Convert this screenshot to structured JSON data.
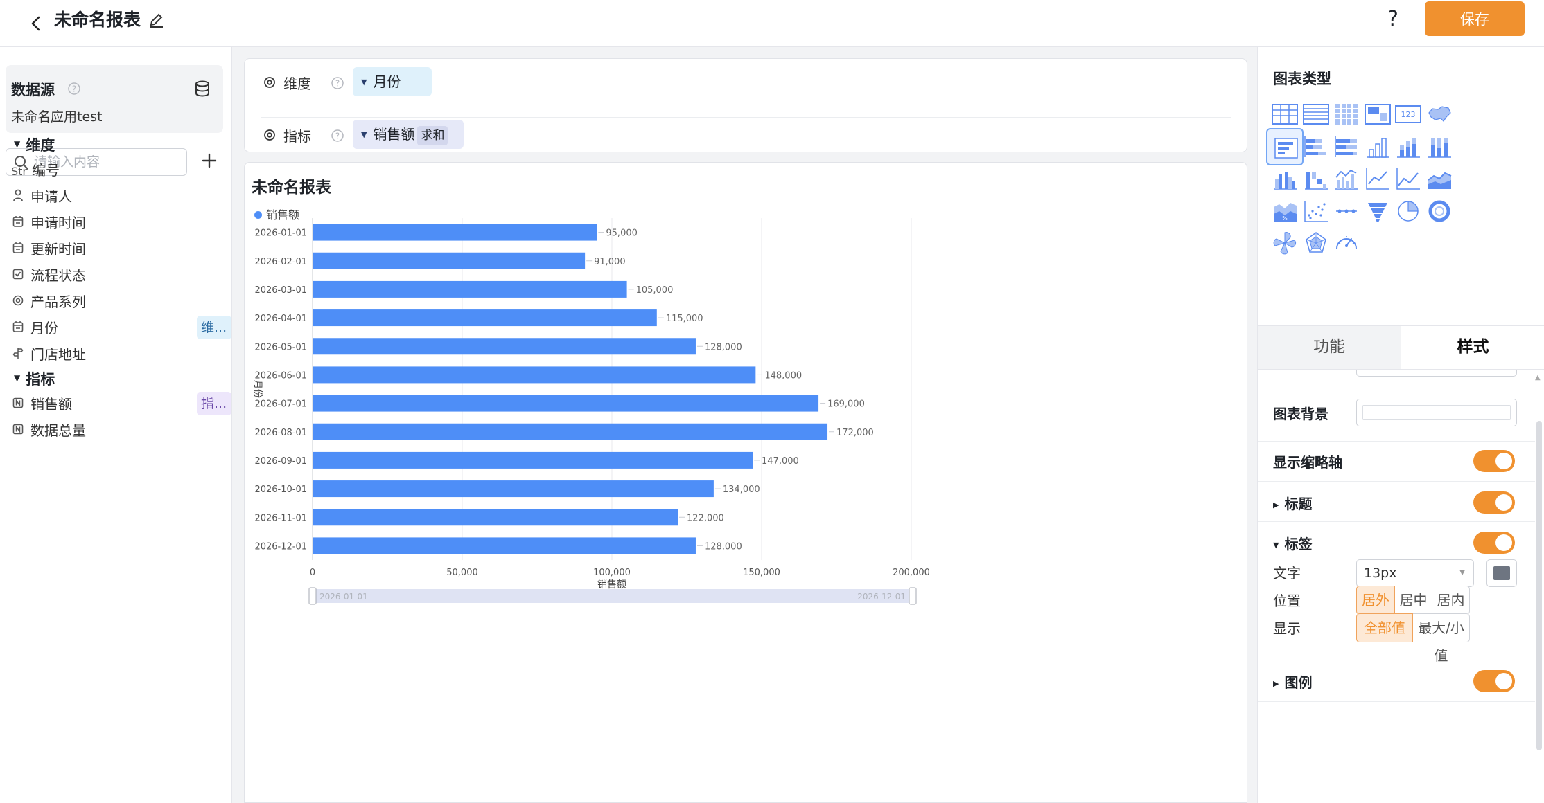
{
  "header": {
    "title": "未命名报表",
    "help": "?",
    "save_label": "保存"
  },
  "datasource": {
    "title": "数据源",
    "app_name": "未命名应用test",
    "search_placeholder": "请输入内容"
  },
  "fields": {
    "dimension_group": "维度",
    "metric_group": "指标",
    "dimensions": [
      {
        "icon": "Str",
        "label": "编号"
      },
      {
        "icon": "user-icon",
        "label": "申请人"
      },
      {
        "icon": "calendar-icon",
        "label": "申请时间"
      },
      {
        "icon": "calendar-icon",
        "label": "更新时间"
      },
      {
        "icon": "checkbox-icon",
        "label": "流程状态"
      },
      {
        "icon": "target-icon",
        "label": "产品系列"
      },
      {
        "icon": "calendar-icon",
        "label": "月份",
        "tag": "维..."
      },
      {
        "icon": "location-icon",
        "label": "门店地址"
      }
    ],
    "metrics": [
      {
        "icon": "number-icon",
        "label": "销售额",
        "tag": "指..."
      },
      {
        "icon": "number-icon",
        "label": "数据总量"
      }
    ]
  },
  "shelf": {
    "dimension_label": "维度",
    "dimension_pill": "月份",
    "metric_label": "指标",
    "metric_pill": "销售额",
    "metric_agg": "求和"
  },
  "chart": {
    "title": "未命名报表",
    "legend": "销售额",
    "slider_start": "2026-01-01",
    "slider_end": "2026-12-01"
  },
  "chart_data": {
    "type": "bar",
    "orientation": "horizontal",
    "categories": [
      "2026-01-01",
      "2026-02-01",
      "2026-03-01",
      "2026-04-01",
      "2026-05-01",
      "2026-06-01",
      "2026-07-01",
      "2026-08-01",
      "2026-09-01",
      "2026-10-01",
      "2026-11-01",
      "2026-12-01"
    ],
    "series": [
      {
        "name": "销售额",
        "values": [
          95000,
          91000,
          105000,
          115000,
          128000,
          148000,
          169000,
          172000,
          147000,
          134000,
          122000,
          128000
        ]
      }
    ],
    "value_labels": [
      "95,000",
      "91,000",
      "105,000",
      "115,000",
      "128,000",
      "148,000",
      "169,000",
      "172,000",
      "147,000",
      "134,000",
      "122,000",
      "128,000"
    ],
    "xlabel": "销售额",
    "ylabel": "月份",
    "xlim": [
      0,
      200000
    ],
    "xticks": [
      "0",
      "50,000",
      "100,000",
      "150,000",
      "200,000"
    ],
    "color": "#4e8ef7",
    "grid": true,
    "legend_position": "top-left"
  },
  "right_panel": {
    "chart_type_title": "图表类型",
    "chart_types": [
      "table-icon",
      "detail-table-icon",
      "pivot-table-icon",
      "indicator-card-icon",
      "number-card-icon",
      "map-icon",
      "horizontal-bar-icon",
      "stacked-horizontal-bar-icon",
      "percent-horizontal-bar-icon",
      "column-icon",
      "stacked-column-icon",
      "percent-column-icon",
      "grouped-column-icon",
      "waterfall-icon",
      "combo-chart-icon",
      "line-chart-icon",
      "area-line-icon",
      "area-chart-icon",
      "percent-area-icon",
      "scatter-icon",
      "dot-line-icon",
      "funnel-icon",
      "pie-icon",
      "ring-icon",
      "rose-icon",
      "radar-icon",
      "gauge-icon"
    ],
    "active_chart_type": "horizontal-bar-icon",
    "tab_function": "功能",
    "tab_style": "样式",
    "chart_bg_label": "图表背景",
    "show_axis_label": "显示缩略轴",
    "title_label": "标题",
    "label_label": "标签",
    "text_label": "文字",
    "text_size": "13px",
    "position_label": "位置",
    "position_options": [
      "居外",
      "居中",
      "居内"
    ],
    "position_selected": "居外",
    "display_label": "显示",
    "display_options": [
      "全部值",
      "最大/小值"
    ],
    "display_selected": "全部值",
    "legend_label": "图例",
    "toggle_color": "#f0912f"
  }
}
